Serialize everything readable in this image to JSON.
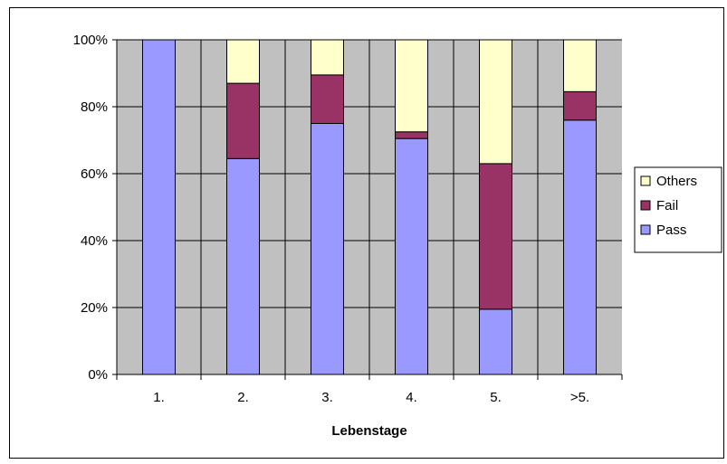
{
  "chart_data": {
    "type": "bar",
    "stacked": true,
    "percent": true,
    "categories": [
      "1.",
      "2.",
      "3.",
      "4.",
      "5.",
      ">5."
    ],
    "series": [
      {
        "name": "Pass",
        "color": "#9999ff",
        "values": [
          100,
          64.5,
          75,
          70.5,
          19.5,
          76
        ]
      },
      {
        "name": "Fail",
        "color": "#993366",
        "values": [
          0,
          22.5,
          14.5,
          2,
          43.5,
          8.5
        ]
      },
      {
        "name": "Others",
        "color": "#ffffcc",
        "values": [
          0,
          13,
          10.5,
          27.5,
          37,
          15.5
        ]
      }
    ],
    "title": "",
    "xlabel": "Lebenstage",
    "ylabel": "",
    "ylim": [
      0,
      100
    ],
    "yticks": [
      "0%",
      "20%",
      "40%",
      "60%",
      "80%",
      "100%"
    ],
    "plot_background": "#c0c0c0",
    "grid": true,
    "legend": {
      "position": "right",
      "entries": [
        "Others",
        "Fail",
        "Pass"
      ]
    }
  }
}
